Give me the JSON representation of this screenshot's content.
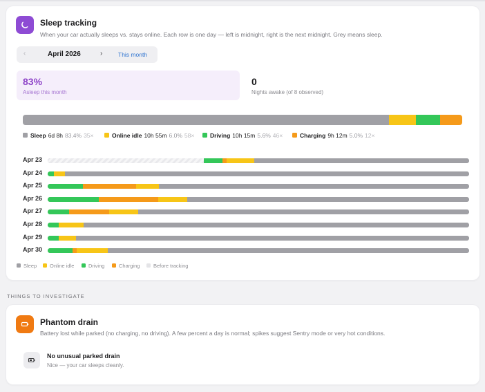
{
  "sleep_card": {
    "title": "Sleep tracking",
    "subtitle": "When your car actually sleeps vs. stays online. Each row is one day — left is midnight, right is the next midnight. Grey means sleep.",
    "icon": "moon-icon",
    "icon_color": "#8e4bd4"
  },
  "month_picker": {
    "prev_icon": "‹",
    "label": "April 2026",
    "next_icon": "›",
    "this_month": "This month"
  },
  "stats": {
    "asleep": {
      "value": "83%",
      "label": "Asleep this month"
    },
    "awake": {
      "value": "0",
      "label": "Nights awake (of 8 observed)"
    }
  },
  "colors": {
    "sleep": "#a0a0a5",
    "online_idle": "#f7c517",
    "driving": "#34c759",
    "charging": "#f59a1a",
    "before_tracking": "#ececef",
    "accent": "#8e44c8"
  },
  "summary": {
    "shares": {
      "sleep": 83.4,
      "online_idle": 6.0,
      "driving": 5.6,
      "charging": 5.0
    },
    "legend": [
      {
        "key": "sleep",
        "name": "Sleep",
        "time": "6d 8h",
        "pct": "83.4%",
        "count": "35×"
      },
      {
        "key": "online_idle",
        "name": "Online idle",
        "time": "10h 55m",
        "pct": "6.0%",
        "count": "58×"
      },
      {
        "key": "driving",
        "name": "Driving",
        "time": "10h 15m",
        "pct": "5.6%",
        "count": "46×"
      },
      {
        "key": "charging",
        "name": "Charging",
        "time": "9h 12m",
        "pct": "5.0%",
        "count": "12×"
      }
    ]
  },
  "days": [
    {
      "label": "Apr 23",
      "segments": [
        [
          "before_tracking",
          37.1
        ],
        [
          "driving",
          4.4
        ],
        [
          "charging",
          1.0
        ],
        [
          "online_idle",
          6.5
        ],
        [
          "sleep",
          51.0
        ]
      ]
    },
    {
      "label": "Apr 24",
      "segments": [
        [
          "driving",
          1.5
        ],
        [
          "online_idle",
          2.6
        ],
        [
          "sleep",
          95.9
        ]
      ]
    },
    {
      "label": "Apr 25",
      "segments": [
        [
          "driving",
          8.4
        ],
        [
          "charging",
          12.6
        ],
        [
          "online_idle",
          5.4
        ],
        [
          "sleep",
          73.6
        ]
      ]
    },
    {
      "label": "Apr 26",
      "segments": [
        [
          "driving",
          12.1
        ],
        [
          "charging",
          14.1
        ],
        [
          "online_idle",
          6.9
        ],
        [
          "sleep",
          66.9
        ]
      ]
    },
    {
      "label": "Apr 27",
      "segments": [
        [
          "driving",
          5.1
        ],
        [
          "charging",
          9.5
        ],
        [
          "online_idle",
          6.9
        ],
        [
          "sleep",
          78.5
        ]
      ]
    },
    {
      "label": "Apr 28",
      "segments": [
        [
          "driving",
          2.6
        ],
        [
          "online_idle",
          5.9
        ],
        [
          "sleep",
          91.5
        ]
      ]
    },
    {
      "label": "Apr 29",
      "segments": [
        [
          "driving",
          2.6
        ],
        [
          "online_idle",
          4.1
        ],
        [
          "sleep",
          93.3
        ]
      ]
    },
    {
      "label": "Apr 30",
      "segments": [
        [
          "driving",
          5.9
        ],
        [
          "charging",
          1.0
        ],
        [
          "online_idle",
          7.4
        ],
        [
          "sleep",
          85.7
        ]
      ]
    }
  ],
  "legend_bottom": [
    {
      "key": "sleep",
      "label": "Sleep"
    },
    {
      "key": "online_idle",
      "label": "Online idle"
    },
    {
      "key": "driving",
      "label": "Driving"
    },
    {
      "key": "charging",
      "label": "Charging"
    },
    {
      "key": "before_tracking",
      "label": "Before tracking"
    }
  ],
  "investigate": {
    "heading": "THINGS TO INVESTIGATE",
    "phantom": {
      "title": "Phantom drain",
      "subtitle": "Battery lost while parked (no charging, no driving). A few percent a day is normal; spikes suggest Sentry mode or very hot conditions.",
      "icon": "battery-icon",
      "icon_color": "#f07a12",
      "result_title": "No unusual parked drain",
      "result_sub": "Nice — your car sleeps cleanly."
    }
  }
}
